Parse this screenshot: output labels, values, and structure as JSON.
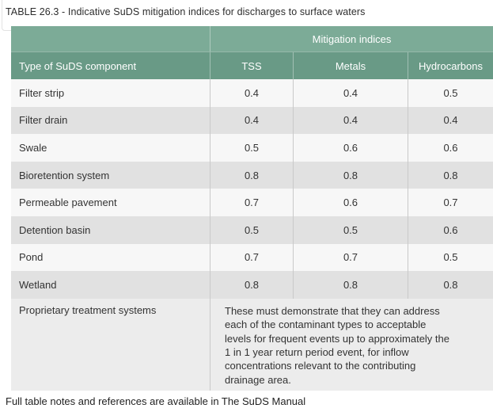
{
  "title": "TABLE 26.3 - Indicative SuDS mitigation indices for discharges to surface waters",
  "table": {
    "group_header": "Mitigation indices",
    "columns": [
      "Type of SuDS component",
      "TSS",
      "Metals",
      "Hydrocarbons"
    ],
    "rows": [
      {
        "component": "Filter strip",
        "tss": "0.4",
        "metals": "0.4",
        "hydrocarbons": "0.5"
      },
      {
        "component": "Filter drain",
        "tss": "0.4",
        "metals": "0.4",
        "hydrocarbons": "0.4"
      },
      {
        "component": "Swale",
        "tss": "0.5",
        "metals": "0.6",
        "hydrocarbons": "0.6"
      },
      {
        "component": "Bioretention system",
        "tss": "0.8",
        "metals": "0.8",
        "hydrocarbons": "0.8"
      },
      {
        "component": "Permeable pavement",
        "tss": "0.7",
        "metals": "0.6",
        "hydrocarbons": "0.7"
      },
      {
        "component": "Detention basin",
        "tss": "0.5",
        "metals": "0.5",
        "hydrocarbons": "0.6"
      },
      {
        "component": "Pond",
        "tss": "0.7",
        "metals": "0.7",
        "hydrocarbons": "0.5"
      },
      {
        "component": "Wetland",
        "tss": "0.8",
        "metals": "0.8",
        "hydrocarbons": "0.8"
      }
    ],
    "proprietary_row": {
      "component": "Proprietary treatment systems",
      "note": "These must demonstrate that they can address each of the contaminant types to acceptable levels for frequent events up to approximately the 1 in 1 year return period event, for inflow concentrations relevant to the contributing drainage area."
    }
  },
  "footer": "Full table notes and references are available in The SuDS Manual",
  "colors": {
    "header_group_green": "#7cab97",
    "header_cols_green": "#699a86",
    "row_light": "#f7f7f7",
    "row_gray": "#e1e1e1",
    "proprietary_row_bg": "#ececec",
    "header_text": "#ffffff",
    "body_text": "#333333"
  }
}
